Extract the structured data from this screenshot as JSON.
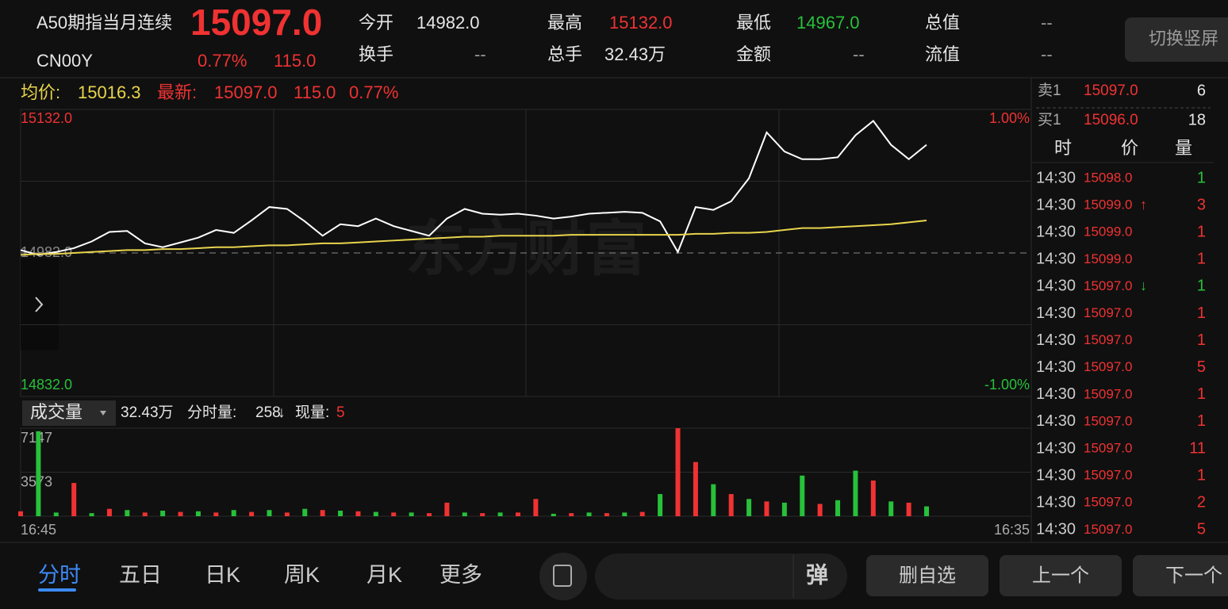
{
  "header": {
    "name": "A50期指当月连续",
    "price": "15097.0",
    "code": "CN00Y",
    "change_pct": "0.77%",
    "change": "115.0",
    "fields": [
      {
        "label": "今开",
        "value": "14982.0"
      },
      {
        "label": "换手",
        "value": "--"
      },
      {
        "label": "最高",
        "value": "15132.0"
      },
      {
        "label": "总手",
        "value": "32.43万"
      },
      {
        "label": "最低",
        "value": "14967.0"
      },
      {
        "label": "金额",
        "value": "--"
      },
      {
        "label": "总值",
        "value": "--"
      },
      {
        "label": "流值",
        "value": "--"
      }
    ],
    "rotate_button": "切换竖屏"
  },
  "summary": {
    "avg_label": "均价:",
    "avg": "15016.3",
    "latest_label": "最新:",
    "latest": "15097.0",
    "change": "115.0",
    "change_pct": "0.77%"
  },
  "watermark": "东方财富",
  "chart_data": [
    {
      "type": "line",
      "color_up": "#f03232",
      "color_down": "#27c13a",
      "ylim": [
        14832,
        15132
      ],
      "yticks": [
        {
          "value": 15132,
          "label": "15132.0"
        },
        {
          "value": 14982,
          "label": "14982.0"
        },
        {
          "value": 14832,
          "label": "14832.0"
        }
      ],
      "y2lim": [
        -1,
        1
      ],
      "y2ticks": [
        {
          "value": 1,
          "label": "1.00%"
        },
        {
          "value": -1,
          "label": "-1.00%"
        }
      ],
      "series": [
        {
          "color": "#ffffff",
          "values": [
            14985,
            14980,
            14983,
            14987,
            14994,
            15004,
            15005,
            14992,
            14988,
            14993,
            14998,
            15006,
            15003,
            15016,
            15030,
            15028,
            15015,
            15000,
            15012,
            15010,
            15018,
            15010,
            15005,
            15000,
            15018,
            15028,
            15023,
            15022,
            15023,
            15021,
            15018,
            15020,
            15023,
            15024,
            15025,
            15024,
            15015,
            14983,
            15030,
            15027,
            15036,
            15060,
            15108,
            15088,
            15080,
            15080,
            15082,
            15105,
            15120,
            15095,
            15080,
            15095
          ]
        },
        {
          "color": "#e8d44d",
          "values": [
            14980,
            14981,
            14981,
            14982,
            14983,
            14984,
            14985,
            14985,
            14986,
            14986,
            14987,
            14988,
            14988,
            14989,
            14990,
            14990,
            14991,
            14992,
            14992,
            14993,
            14994,
            14995,
            14996,
            14997,
            14998,
            14999,
            14999,
            15000,
            15000,
            15000,
            15000,
            15001,
            15001,
            15001,
            15001,
            15001,
            15001,
            15001,
            15002,
            15002,
            15003,
            15003,
            15004,
            15006,
            15008,
            15008,
            15009,
            15010,
            15011,
            15012,
            15014,
            15016
          ]
        }
      ]
    },
    {
      "type": "bar",
      "ylim": [
        0,
        7147
      ],
      "yticks": [
        7147,
        3573
      ],
      "x_labels": [
        "16:45",
        "16:35"
      ],
      "values": [
        400,
        6900,
        300,
        2700,
        250,
        600,
        500,
        300,
        450,
        350,
        400,
        300,
        500,
        350,
        500,
        300,
        600,
        500,
        450,
        400,
        350,
        300,
        300,
        250,
        1100,
        300,
        250,
        300,
        300,
        1400,
        200,
        250,
        300,
        250,
        300,
        350,
        1800,
        7147,
        4400,
        2600,
        1800,
        1400,
        1200,
        1100,
        3300,
        1000,
        1300,
        3700,
        2900,
        1200,
        1100,
        800
      ],
      "colors": [
        "#f03232",
        "#27c13a",
        "#27c13a",
        "#f03232",
        "#27c13a",
        "#f03232",
        "#27c13a",
        "#f03232",
        "#27c13a",
        "#f03232",
        "#27c13a",
        "#f03232",
        "#27c13a",
        "#f03232",
        "#27c13a",
        "#f03232",
        "#27c13a",
        "#f03232",
        "#27c13a",
        "#f03232",
        "#27c13a",
        "#f03232",
        "#27c13a",
        "#f03232",
        "#f03232",
        "#27c13a",
        "#f03232",
        "#27c13a",
        "#f03232",
        "#f03232",
        "#27c13a",
        "#f03232",
        "#27c13a",
        "#f03232",
        "#27c13a",
        "#f03232",
        "#27c13a",
        "#f03232",
        "#f03232",
        "#27c13a",
        "#f03232",
        "#27c13a",
        "#f03232",
        "#27c13a",
        "#27c13a",
        "#f03232",
        "#27c13a",
        "#27c13a",
        "#f03232",
        "#27c13a",
        "#f03232",
        "#27c13a"
      ]
    }
  ],
  "volume_header": {
    "selector": "成交量",
    "total": "32.43万",
    "period_label": "分时量:",
    "period": "258",
    "period_arrow": "↓",
    "current_label": "现量:",
    "current": "5"
  },
  "order_book": [
    {
      "side": "卖1",
      "price": "15097.0",
      "volume": "6"
    },
    {
      "side": "买1",
      "price": "15096.0",
      "volume": "18"
    }
  ],
  "trades": {
    "columns": [
      "时",
      "价",
      "量"
    ],
    "rows": [
      {
        "time": "14:30",
        "price": "15098.0",
        "flag": "",
        "volume": 1,
        "color": "#27c13a"
      },
      {
        "time": "14:30",
        "price": "15099.0",
        "flag": "↑",
        "volume": 3,
        "color": "#f03232"
      },
      {
        "time": "14:30",
        "price": "15099.0",
        "flag": "",
        "volume": 1,
        "color": "#f03232"
      },
      {
        "time": "14:30",
        "price": "15099.0",
        "flag": "",
        "volume": 1,
        "color": "#f03232"
      },
      {
        "time": "14:30",
        "price": "15097.0",
        "flag": "↓",
        "volume": 1,
        "color": "#27c13a"
      },
      {
        "time": "14:30",
        "price": "15097.0",
        "flag": "",
        "volume": 1,
        "color": "#f03232"
      },
      {
        "time": "14:30",
        "price": "15097.0",
        "flag": "",
        "volume": 1,
        "color": "#f03232"
      },
      {
        "time": "14:30",
        "price": "15097.0",
        "flag": "",
        "volume": 5,
        "color": "#f03232"
      },
      {
        "time": "14:30",
        "price": "15097.0",
        "flag": "",
        "volume": 1,
        "color": "#f03232"
      },
      {
        "time": "14:30",
        "price": "15097.0",
        "flag": "",
        "volume": 1,
        "color": "#f03232"
      },
      {
        "time": "14:30",
        "price": "15097.0",
        "flag": "",
        "volume": 11,
        "color": "#f03232"
      },
      {
        "time": "14:30",
        "price": "15097.0",
        "flag": "",
        "volume": 1,
        "color": "#f03232"
      },
      {
        "time": "14:30",
        "price": "15097.0",
        "flag": "",
        "volume": 2,
        "color": "#f03232"
      },
      {
        "time": "14:30",
        "price": "15097.0",
        "flag": "",
        "volume": 5,
        "color": "#f03232"
      }
    ]
  },
  "tabs": [
    "分时",
    "五日",
    "日K",
    "周K",
    "月K",
    "更多"
  ],
  "search_icon": "弹",
  "buttons": [
    "删自选",
    "上一个",
    "下一个"
  ]
}
